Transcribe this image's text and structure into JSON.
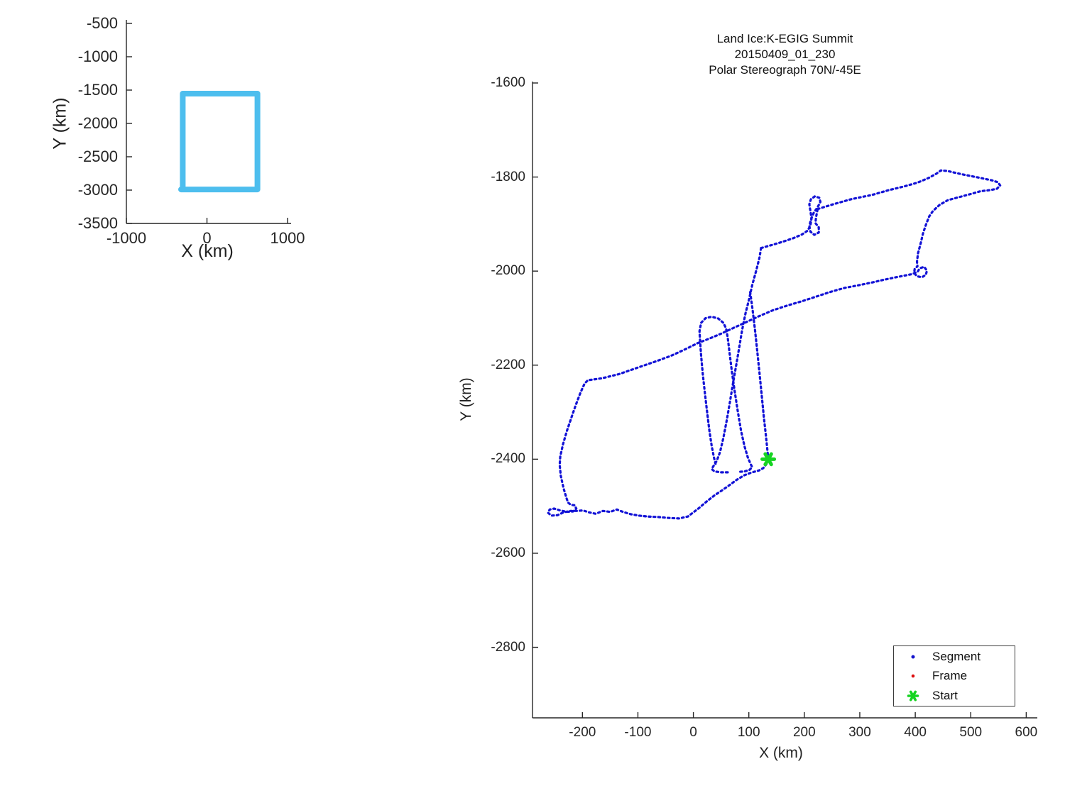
{
  "main_title": {
    "lines": [
      "Land Ice:K-EGIG Summit",
      "20150409_01_230",
      "Polar Stereograph 70N/-45E"
    ]
  },
  "legend": {
    "items": [
      {
        "label": "Segment",
        "marker": "dot",
        "color": "#1414cc",
        "size": 5
      },
      {
        "label": "Frame",
        "marker": "dot",
        "color": "#dd0f0f",
        "size": 4.5
      },
      {
        "label": "Start",
        "marker": "asterisk",
        "color": "#16d422",
        "size": 13
      }
    ]
  },
  "colors": {
    "trajectory": "#1212d6",
    "coverage_box": "#4dbeee",
    "start_marker": "#16d422",
    "axis": "#262626"
  },
  "chart_data": [
    {
      "id": "inset-overview",
      "type": "line",
      "xlabel": "X (km)",
      "ylabel": "Y (km)",
      "axis": {
        "xlim": [
          -1000,
          1000
        ],
        "ylim": [
          -3500,
          -500
        ],
        "xticks": [
          -1000,
          0,
          1000
        ],
        "yticks": [
          -3500,
          -3000,
          -2500,
          -2000,
          -1500,
          -1000,
          -500
        ],
        "xtick_labels": [
          "-1000",
          "0",
          "1000"
        ],
        "ytick_labels": [
          "-3500",
          "-3000",
          "-2500",
          "-2000",
          "-1500",
          "-1000",
          "-500"
        ]
      },
      "strokes": [
        {
          "name": "coverage-box",
          "color": "#4dbeee",
          "width": 8,
          "dash": "none",
          "points": [
            [
              -300,
              -2958
            ],
            [
              -300,
              -1553
            ],
            [
              626,
              -1553
            ],
            [
              626,
              -2990
            ],
            [
              -322,
              -2990
            ]
          ]
        }
      ],
      "markers": []
    },
    {
      "id": "main-trajectory",
      "type": "line",
      "xlabel": "X (km)",
      "ylabel": "Y (km)",
      "axis": {
        "xlim": [
          -290,
          620
        ],
        "ylim": [
          -2950,
          -1597
        ],
        "xticks": [
          -200,
          -100,
          0,
          100,
          200,
          300,
          400,
          500,
          600
        ],
        "yticks": [
          -2800,
          -2600,
          -2400,
          -2200,
          -2000,
          -1800,
          -1600
        ],
        "xtick_labels": [
          "-200",
          "-100",
          "0",
          "100",
          "200",
          "300",
          "400",
          "500",
          "600"
        ],
        "ytick_labels": [
          "-2800",
          "-2600",
          "-2400",
          "-2200",
          "-2000",
          "-1800",
          "-1600"
        ]
      },
      "strokes": [
        {
          "name": "segment-grand-tour",
          "color": "#1212d6",
          "width": 3.2,
          "dash": "2.5 4.2",
          "points": [
            [
              224,
              -1868
            ],
            [
              252,
              -1858
            ],
            [
              285,
              -1847
            ],
            [
              322,
              -1838
            ],
            [
              352,
              -1828
            ],
            [
              380,
              -1820
            ],
            [
              404,
              -1812
            ],
            [
              424,
              -1802
            ],
            [
              438,
              -1793
            ],
            [
              446,
              -1786
            ],
            [
              458,
              -1787
            ],
            [
              472,
              -1791
            ],
            [
              488,
              -1795
            ],
            [
              505,
              -1799
            ],
            [
              522,
              -1803
            ],
            [
              538,
              -1807
            ],
            [
              549,
              -1811
            ],
            [
              553,
              -1818
            ],
            [
              547,
              -1825
            ],
            [
              534,
              -1828
            ],
            [
              518,
              -1830
            ],
            [
              500,
              -1836
            ],
            [
              478,
              -1843
            ],
            [
              459,
              -1849
            ],
            [
              444,
              -1859
            ],
            [
              432,
              -1872
            ],
            [
              425,
              -1884
            ],
            [
              419,
              -1902
            ],
            [
              414,
              -1920
            ],
            [
              410,
              -1940
            ],
            [
              405,
              -1962
            ],
            [
              403,
              -1980
            ],
            [
              404,
              -1990
            ],
            [
              399,
              -1995
            ],
            [
              398,
              -2004
            ],
            [
              403,
              -2011
            ],
            [
              412,
              -2013
            ],
            [
              419,
              -2008
            ],
            [
              421,
              -1999
            ],
            [
              416,
              -1991
            ],
            [
              408,
              -1994
            ],
            [
              404,
              -2002
            ],
            [
              392,
              -2007
            ],
            [
              370,
              -2012
            ],
            [
              345,
              -2018
            ],
            [
              323,
              -2024
            ],
            [
              298,
              -2030
            ],
            [
              272,
              -2036
            ],
            [
              248,
              -2044
            ],
            [
              222,
              -2054
            ],
            [
              196,
              -2064
            ],
            [
              170,
              -2073
            ],
            [
              144,
              -2083
            ],
            [
              120,
              -2095
            ],
            [
              98,
              -2107
            ],
            [
              74,
              -2120
            ],
            [
              50,
              -2133
            ],
            [
              28,
              -2144
            ],
            [
              8,
              -2153
            ],
            [
              -14,
              -2166
            ],
            [
              -40,
              -2180
            ],
            [
              -70,
              -2193
            ],
            [
              -102,
              -2206
            ],
            [
              -134,
              -2219
            ],
            [
              -165,
              -2228
            ],
            [
              -190,
              -2232
            ],
            [
              -196,
              -2239
            ],
            [
              -204,
              -2260
            ],
            [
              -212,
              -2285
            ],
            [
              -220,
              -2312
            ],
            [
              -228,
              -2340
            ],
            [
              -235,
              -2368
            ],
            [
              -240,
              -2394
            ],
            [
              -241,
              -2412
            ],
            [
              -239,
              -2435
            ],
            [
              -234,
              -2462
            ],
            [
              -229,
              -2482
            ],
            [
              -226,
              -2492
            ],
            [
              -221,
              -2497
            ],
            [
              -214,
              -2498
            ],
            [
              -211,
              -2505
            ],
            [
              -217,
              -2511
            ],
            [
              -228,
              -2512
            ],
            [
              -240,
              -2509
            ],
            [
              -251,
              -2505
            ],
            [
              -259,
              -2507
            ],
            [
              -262,
              -2514
            ],
            [
              -256,
              -2520
            ],
            [
              -245,
              -2519
            ],
            [
              -234,
              -2513
            ],
            [
              -222,
              -2510
            ],
            [
              -210,
              -2510
            ],
            [
              -199,
              -2509
            ],
            [
              -188,
              -2513
            ],
            [
              -176,
              -2516
            ],
            [
              -163,
              -2510
            ],
            [
              -150,
              -2512
            ],
            [
              -138,
              -2507
            ],
            [
              -127,
              -2512
            ],
            [
              -113,
              -2517
            ],
            [
              -98,
              -2520
            ],
            [
              -82,
              -2522
            ],
            [
              -63,
              -2523
            ],
            [
              -44,
              -2525
            ],
            [
              -26,
              -2526
            ],
            [
              -10,
              -2522
            ],
            [
              -1,
              -2514
            ],
            [
              10,
              -2504
            ],
            [
              24,
              -2490
            ],
            [
              38,
              -2477
            ],
            [
              52,
              -2466
            ],
            [
              64,
              -2456
            ],
            [
              78,
              -2444
            ],
            [
              92,
              -2434
            ],
            [
              106,
              -2428
            ],
            [
              118,
              -2424
            ],
            [
              126,
              -2419
            ],
            [
              132,
              -2410
            ],
            [
              135,
              -2400
            ]
          ]
        },
        {
          "name": "segment-figure-eight",
          "color": "#1212d6",
          "width": 3.2,
          "dash": "2.5 4.2",
          "points": [
            [
              122,
              -1951
            ],
            [
              140,
              -1945
            ],
            [
              160,
              -1938
            ],
            [
              180,
              -1930
            ],
            [
              196,
              -1922
            ],
            [
              206,
              -1914
            ],
            [
              211,
              -1903
            ],
            [
              213,
              -1888
            ],
            [
              211,
              -1872
            ],
            [
              209,
              -1858
            ],
            [
              212,
              -1847
            ],
            [
              219,
              -1841
            ],
            [
              227,
              -1844
            ],
            [
              229,
              -1853
            ],
            [
              224,
              -1864
            ],
            [
              217,
              -1876
            ],
            [
              212,
              -1890
            ],
            [
              209,
              -1904
            ],
            [
              211,
              -1916
            ],
            [
              218,
              -1923
            ],
            [
              226,
              -1918
            ],
            [
              226,
              -1907
            ],
            [
              220,
              -1898
            ],
            [
              221,
              -1886
            ],
            [
              224,
              -1868
            ]
          ]
        },
        {
          "name": "segment-descent-line",
          "color": "#1212d6",
          "width": 3.2,
          "dash": "2.5 4.2",
          "points": [
            [
              122,
              -1951
            ],
            [
              119,
              -1972
            ],
            [
              113,
              -2000
            ],
            [
              106,
              -2030
            ],
            [
              100,
              -2062
            ],
            [
              94,
              -2090
            ],
            [
              88,
              -2125
            ],
            [
              83,
              -2160
            ],
            [
              78,
              -2195
            ],
            [
              72,
              -2235
            ],
            [
              66,
              -2278
            ],
            [
              60,
              -2318
            ],
            [
              54,
              -2355
            ],
            [
              48,
              -2385
            ],
            [
              42,
              -2404
            ],
            [
              36,
              -2415
            ],
            [
              33,
              -2421
            ],
            [
              38,
              -2426
            ],
            [
              50,
              -2428
            ],
            [
              64,
              -2428
            ]
          ]
        },
        {
          "name": "segment-start-column",
          "color": "#1212d6",
          "width": 3.2,
          "dash": "2.5 4.2",
          "points": [
            [
              135,
              -2400
            ],
            [
              131,
              -2352
            ],
            [
              127,
              -2310
            ],
            [
              123,
              -2262
            ],
            [
              119,
              -2215
            ],
            [
              115,
              -2168
            ],
            [
              111,
              -2124
            ],
            [
              107,
              -2085
            ],
            [
              104,
              -2058
            ],
            [
              102,
              -2042
            ]
          ]
        },
        {
          "name": "segment-racetrack",
          "color": "#1212d6",
          "width": 3.2,
          "dash": "2.5 4.2",
          "points": [
            [
              40,
              -2410
            ],
            [
              37,
              -2396
            ],
            [
              33,
              -2372
            ],
            [
              29,
              -2340
            ],
            [
              25,
              -2302
            ],
            [
              21,
              -2262
            ],
            [
              17,
              -2220
            ],
            [
              14,
              -2180
            ],
            [
              12,
              -2148
            ],
            [
              11,
              -2128
            ],
            [
              14,
              -2110
            ],
            [
              22,
              -2100
            ],
            [
              33,
              -2097
            ],
            [
              45,
              -2101
            ],
            [
              54,
              -2110
            ],
            [
              59,
              -2122
            ],
            [
              62,
              -2142
            ],
            [
              65,
              -2172
            ],
            [
              69,
              -2210
            ],
            [
              74,
              -2252
            ],
            [
              80,
              -2298
            ],
            [
              86,
              -2340
            ],
            [
              92,
              -2372
            ],
            [
              98,
              -2396
            ],
            [
              103,
              -2410
            ],
            [
              106,
              -2417
            ],
            [
              101,
              -2423
            ],
            [
              92,
              -2426
            ],
            [
              80,
              -2427
            ]
          ]
        }
      ],
      "markers": [
        {
          "name": "start-marker",
          "shape": "asterisk",
          "color": "#16d422",
          "x": 135,
          "y": -2400,
          "size": 17
        }
      ]
    }
  ]
}
